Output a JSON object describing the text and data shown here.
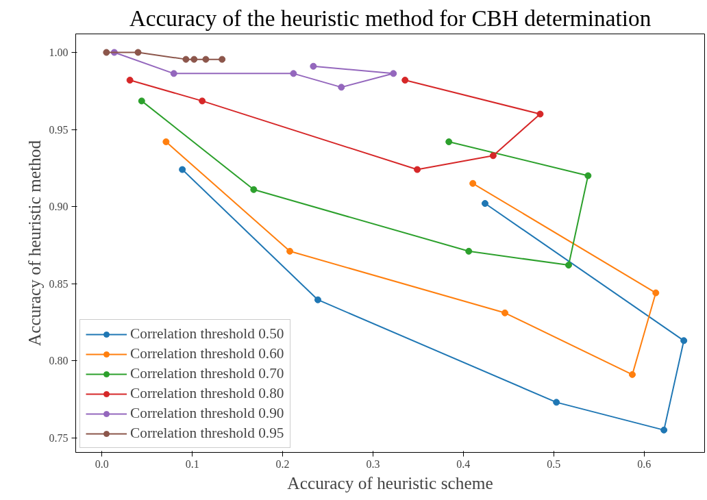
{
  "chart_data": {
    "type": "line",
    "title": "Accuracy of the heuristic method for CBH determination",
    "xlabel": "Accuracy of heuristic scheme",
    "ylabel": "Accuracy of heuristic method",
    "xlim": [
      -0.029,
      0.667
    ],
    "ylim": [
      0.7405,
      1.012
    ],
    "xticks": [
      {
        "value": 0.0,
        "label": "0.0"
      },
      {
        "value": 0.1,
        "label": "0.1"
      },
      {
        "value": 0.2,
        "label": "0.2"
      },
      {
        "value": 0.3,
        "label": "0.3"
      },
      {
        "value": 0.4,
        "label": "0.4"
      },
      {
        "value": 0.5,
        "label": "0.5"
      },
      {
        "value": 0.6,
        "label": "0.6"
      }
    ],
    "yticks": [
      {
        "value": 0.75,
        "label": "0.75"
      },
      {
        "value": 0.8,
        "label": "0.80"
      },
      {
        "value": 0.85,
        "label": "0.85"
      },
      {
        "value": 0.9,
        "label": "0.90"
      },
      {
        "value": 0.95,
        "label": "0.95"
      },
      {
        "value": 1.0,
        "label": "1.00"
      }
    ],
    "grid": false,
    "legend": "bottom left",
    "marker": "circle",
    "line_style": "solid",
    "series": [
      {
        "name": "Correlation threshold 0.50",
        "color": "#1f77b4",
        "x": [
          0.089,
          0.239,
          0.503,
          0.622,
          0.644,
          0.424
        ],
        "values": [
          0.924,
          0.8395,
          0.773,
          0.755,
          0.813,
          0.902
        ]
      },
      {
        "name": "Correlation threshold 0.60",
        "color": "#ff7f0e",
        "x": [
          0.071,
          0.208,
          0.446,
          0.587,
          0.613,
          0.4105
        ],
        "values": [
          0.942,
          0.871,
          0.831,
          0.791,
          0.844,
          0.915
        ]
      },
      {
        "name": "Correlation threshold 0.70",
        "color": "#2ca02c",
        "x": [
          0.044,
          0.168,
          0.406,
          0.5165,
          0.538,
          0.384
        ],
        "values": [
          0.9685,
          0.911,
          0.871,
          0.862,
          0.92,
          0.942
        ]
      },
      {
        "name": "Correlation threshold 0.80",
        "color": "#d62728",
        "x": [
          0.031,
          0.111,
          0.349,
          0.433,
          0.485,
          0.3355
        ],
        "values": [
          0.982,
          0.9685,
          0.924,
          0.933,
          0.96,
          0.982
        ]
      },
      {
        "name": "Correlation threshold 0.90",
        "color": "#9467bd",
        "x": [
          0.0137,
          0.0796,
          0.212,
          0.265,
          0.3226,
          0.234
        ],
        "values": [
          1.0,
          0.9863,
          0.9863,
          0.9774,
          0.9863,
          0.991
        ]
      },
      {
        "name": "Correlation threshold 0.95",
        "color": "#8c564b",
        "x": [
          0.005,
          0.04,
          0.093,
          0.102,
          0.115,
          0.133
        ],
        "values": [
          1.0,
          1.0,
          0.9955,
          0.9955,
          0.9955,
          0.9955
        ]
      }
    ]
  }
}
